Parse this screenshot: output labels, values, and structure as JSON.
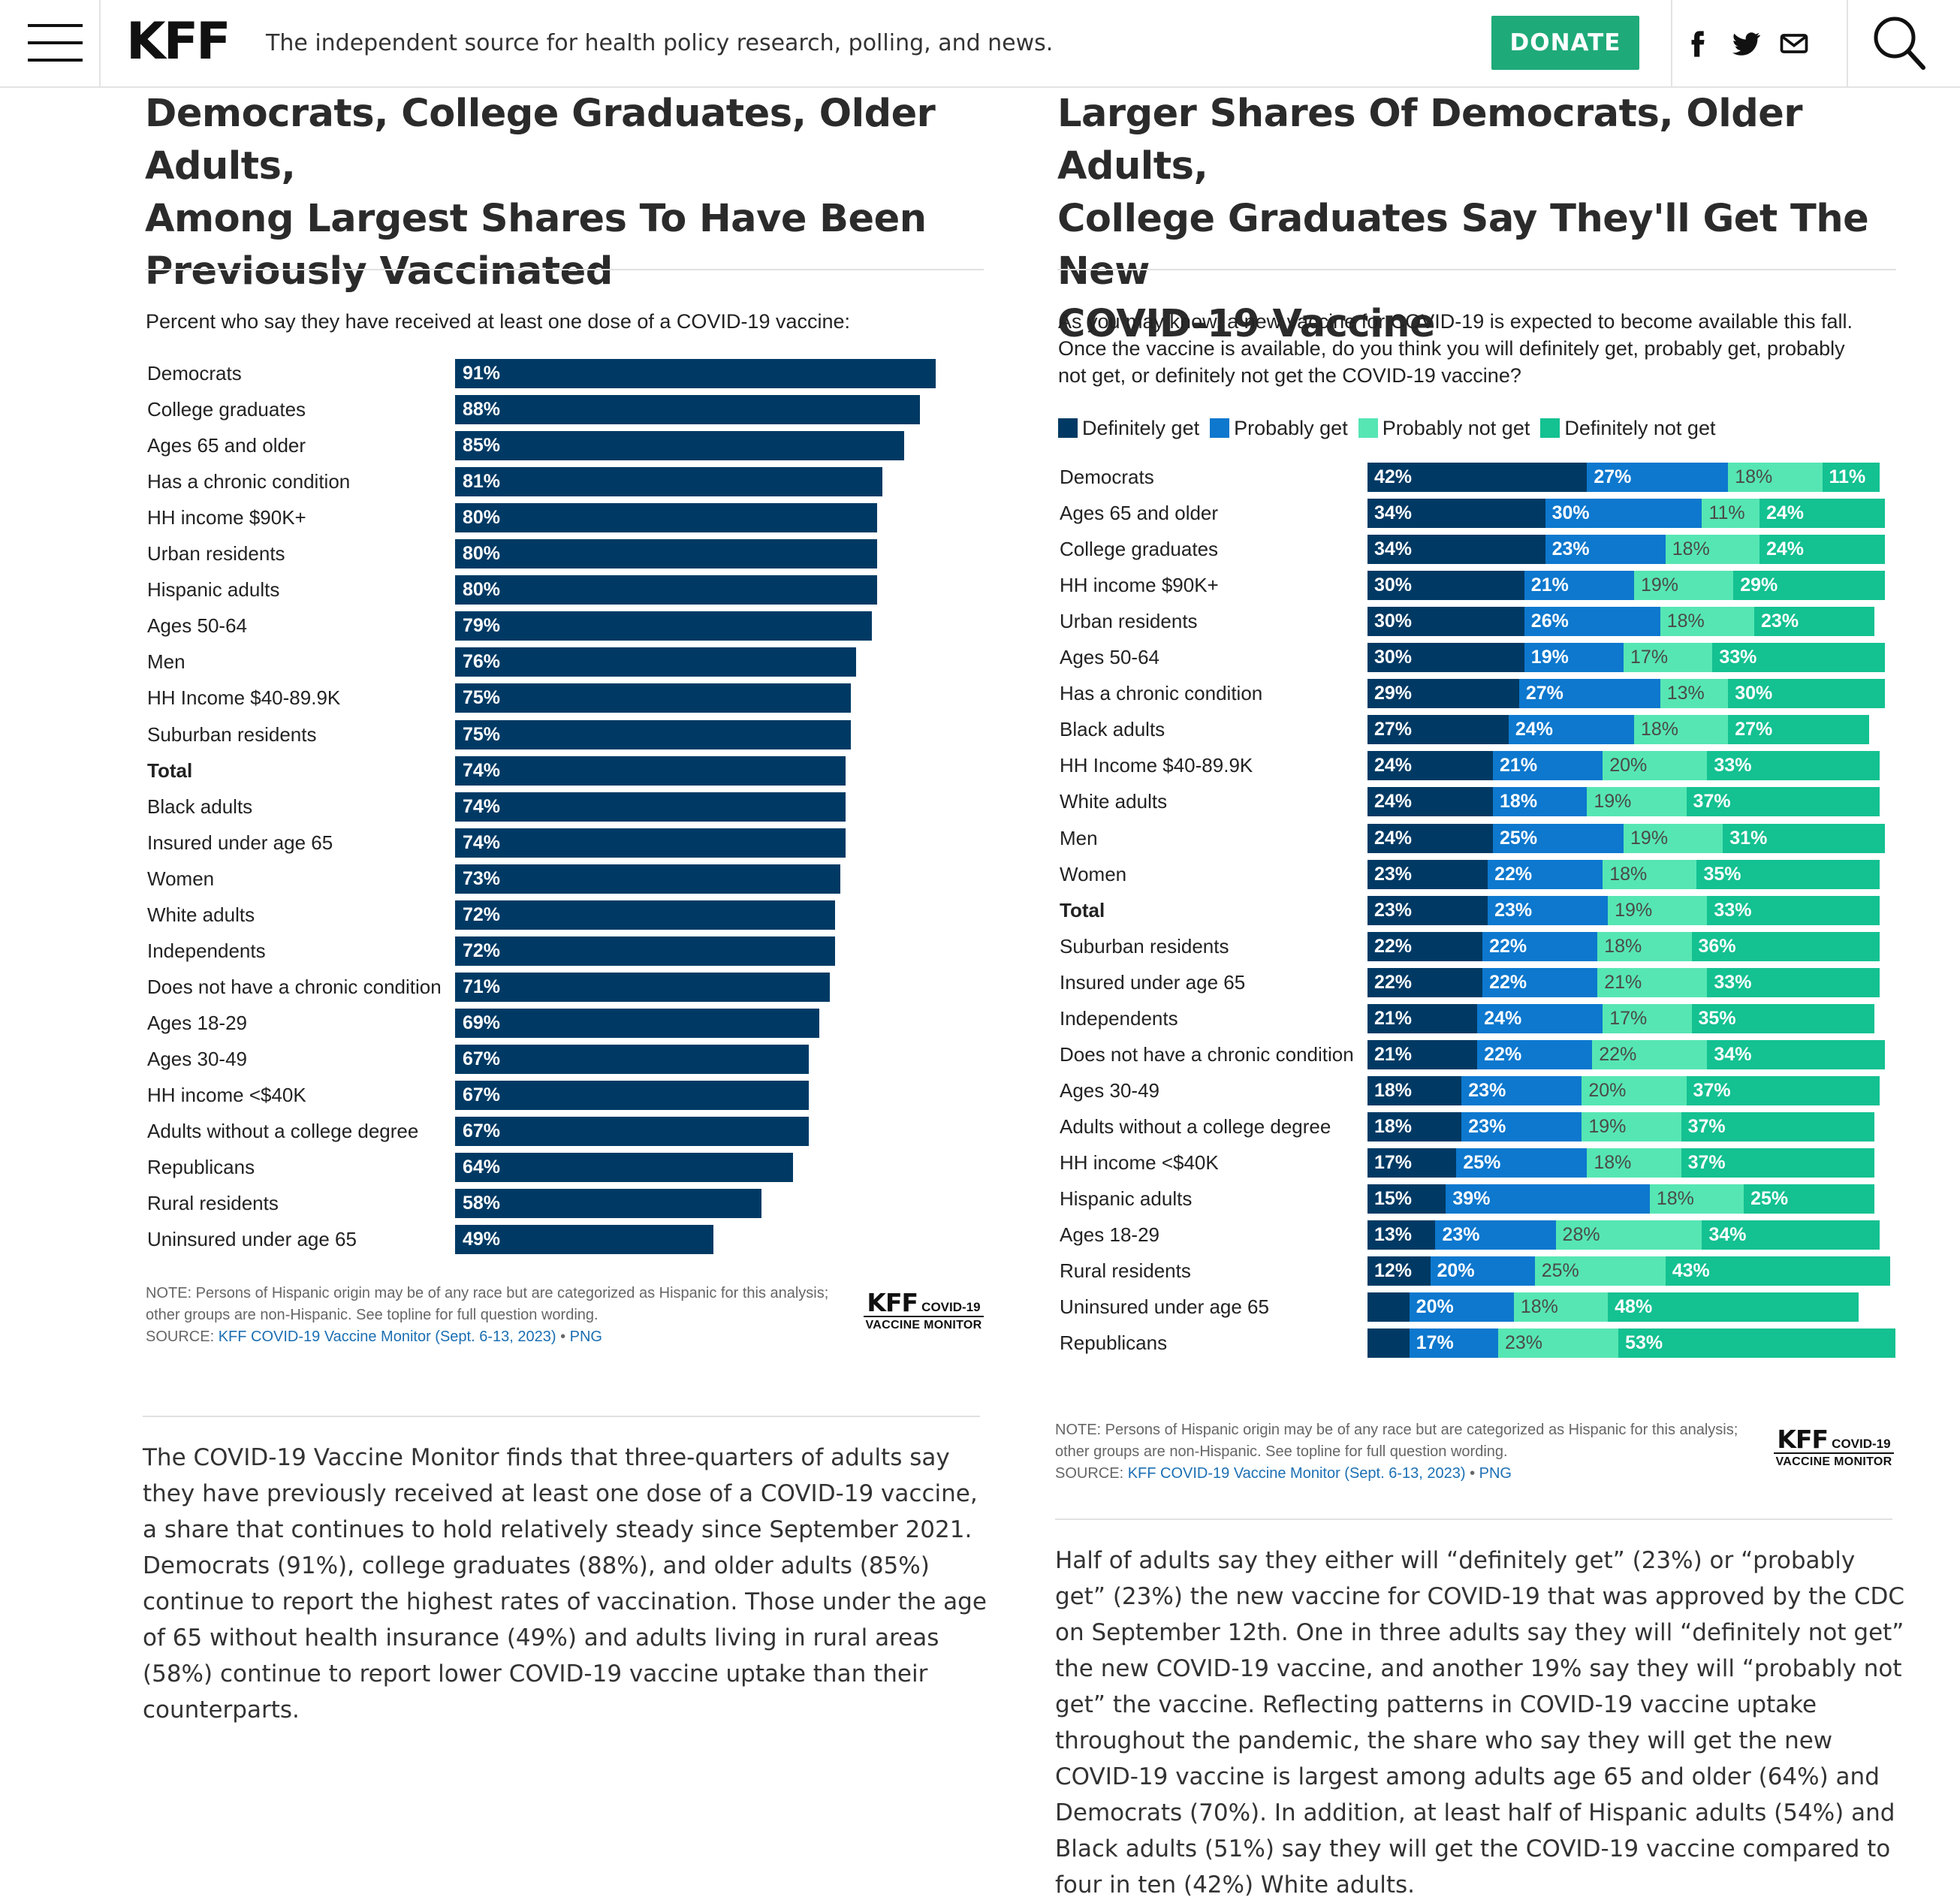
{
  "header": {
    "logo": "KFF",
    "tagline": "The independent source for health policy research, polling, and news.",
    "donate_label": "DONATE",
    "social_icons": [
      "facebook-icon",
      "twitter-icon",
      "email-icon"
    ],
    "search_icon": "search-icon",
    "menu_icon": "hamburger-menu-icon"
  },
  "colors": {
    "kff_green": "#1faa7a",
    "definitely_get": "#003a64",
    "probably_get": "#0d78ce",
    "probably_not_get": "#56e6b3",
    "definitely_not_get": "#14c191",
    "link": "#1b6fb3"
  },
  "left": {
    "title_lines": [
      "Democrats, College Graduates, Older Adults,",
      "Among Largest Shares To Have Been",
      "Previously Vaccinated"
    ],
    "subtitle": "Percent who say they have received at least one dose of a COVID-19 vaccine:",
    "note": "NOTE: Persons of Hispanic origin may be of any race but are categorized as Hispanic for this analysis; other groups are non-Hispanic. See topline for full question wording.",
    "source_prefix": "SOURCE: ",
    "source_link": "KFF COVID-19 Vaccine Monitor (Sept. 6-13, 2023)",
    "source_sep": " • ",
    "png_link": "PNG",
    "badge": {
      "kff": "KFF",
      "covid": "COVID-19",
      "monitor": "VACCINE MONITOR"
    },
    "paragraph": "The COVID-19 Vaccine Monitor finds that three-quarters of adults say they have previously received at least one dose of a COVID-19 vaccine, a share that continues to hold relatively steady since September 2021. Democrats (91%), college graduates (88%), and older adults (85%) continue to report the highest rates of vaccination. Those under the age of 65 without health insurance (49%) and adults living in rural areas (58%) continue to report lower COVID-19 vaccine uptake than their counterparts."
  },
  "right": {
    "title_lines": [
      "Larger Shares Of Democrats, Older Adults,",
      "College Graduates Say They'll Get The New",
      "COVID-19 Vaccine"
    ],
    "subtitle_lines": [
      "As you may know, a new vaccine for COVID-19 is expected to become available this fall.",
      "Once the vaccine is available, do you think you will definitely get, probably get, probably",
      "not get, or definitely not get the COVID-19 vaccine?"
    ],
    "note": "NOTE: Persons of Hispanic origin may be of any race but are categorized as Hispanic for this analysis; other groups are non-Hispanic. See topline for full question wording.",
    "source_prefix": "SOURCE: ",
    "source_link": "KFF COVID-19 Vaccine Monitor (Sept. 6-13, 2023)",
    "source_sep": " • ",
    "png_link": "PNG",
    "badge": {
      "kff": "KFF",
      "covid": "COVID-19",
      "monitor": "VACCINE MONITOR"
    },
    "paragraph": "Half of adults say they either will “definitely get” (23%) or “probably get” (23%) the new vaccine for COVID-19 that was approved by the CDC on September 12th. One in three adults say they will “definitely not get” the new COVID-19 vaccine, and another 19% say they will “probably not get” the vaccine. Reflecting patterns in COVID-19 vaccine uptake throughout the pandemic, the share who say they will get the new COVID-19 vaccine is largest among adults age 65 and older (64%) and Democrats (70%). In addition, at least half of Hispanic adults (54%) and Black adults (51%) say they will get the COVID-19 vaccine compared to four in ten (42%) White adults."
  },
  "chart_data": [
    {
      "type": "bar",
      "orientation": "horizontal",
      "title": "Democrats, College Graduates, Older Adults, Among Largest Shares To Have Been Previously Vaccinated",
      "subtitle": "Percent who say they have received at least one dose of a COVID-19 vaccine:",
      "categories": [
        "Democrats",
        "College graduates",
        "Ages 65 and older",
        "Has a chronic condition",
        "HH income $90K+",
        "Urban residents",
        "Hispanic adults",
        "Ages 50-64",
        "Men",
        "HH Income $40-89.9K",
        "Suburban residents",
        "Total",
        "Black adults",
        "Insured under age 65",
        "Women",
        "White adults",
        "Independents",
        "Does not have a chronic condition",
        "Ages 18-29",
        "Ages 30-49",
        "HH income <$40K",
        "Adults without a college degree",
        "Republicans",
        "Rural residents",
        "Uninsured under age 65"
      ],
      "values": [
        91,
        88,
        85,
        81,
        80,
        80,
        80,
        79,
        76,
        75,
        75,
        74,
        74,
        74,
        73,
        72,
        72,
        71,
        69,
        67,
        67,
        67,
        64,
        58,
        49
      ],
      "bold_category": "Total",
      "color": "#003a64",
      "xlim": [
        0,
        100
      ],
      "grid": false
    },
    {
      "type": "bar",
      "orientation": "horizontal",
      "stacked": true,
      "title": "Larger Shares Of Democrats, Older Adults, College Graduates Say They'll Get The New COVID-19 Vaccine",
      "legend": "top-left",
      "categories": [
        "Democrats",
        "Ages 65 and older",
        "College graduates",
        "HH income $90K+",
        "Urban residents",
        "Ages 50-64",
        "Has a chronic condition",
        "Black adults",
        "HH Income $40-89.9K",
        "White adults",
        "Men",
        "Women",
        "Total",
        "Suburban residents",
        "Insured under age 65",
        "Independents",
        "Does not have a chronic condition",
        "Ages 30-49",
        "Adults without a college degree",
        "HH income <$40K",
        "Hispanic adults",
        "Ages 18-29",
        "Rural residents",
        "Uninsured under age 65",
        "Republicans"
      ],
      "bold_category": "Total",
      "series": [
        {
          "name": "Definitely get",
          "color": "#003a64",
          "values": [
            42,
            34,
            34,
            30,
            30,
            30,
            29,
            27,
            24,
            24,
            24,
            23,
            23,
            22,
            22,
            21,
            21,
            18,
            18,
            17,
            15,
            13,
            12,
            8,
            8
          ],
          "labels": [
            "42%",
            "34%",
            "34%",
            "30%",
            "30%",
            "30%",
            "29%",
            "27%",
            "24%",
            "24%",
            "24%",
            "23%",
            "23%",
            "22%",
            "22%",
            "21%",
            "21%",
            "18%",
            "18%",
            "17%",
            "15%",
            "13%",
            "12%",
            "",
            ""
          ]
        },
        {
          "name": "Probably get",
          "color": "#0d78ce",
          "values": [
            27,
            30,
            23,
            21,
            26,
            19,
            27,
            24,
            21,
            18,
            25,
            22,
            23,
            22,
            22,
            24,
            22,
            23,
            23,
            25,
            39,
            23,
            20,
            20,
            17
          ],
          "labels": [
            "27%",
            "30%",
            "23%",
            "21%",
            "26%",
            "19%",
            "27%",
            "24%",
            "21%",
            "18%",
            "25%",
            "22%",
            "23%",
            "22%",
            "22%",
            "24%",
            "22%",
            "23%",
            "23%",
            "25%",
            "39%",
            "23%",
            "20%",
            "20%",
            "17%"
          ]
        },
        {
          "name": "Probably not get",
          "color": "#56e6b3",
          "values": [
            18,
            11,
            18,
            19,
            18,
            17,
            13,
            18,
            20,
            19,
            19,
            18,
            19,
            18,
            21,
            17,
            22,
            20,
            19,
            18,
            18,
            28,
            25,
            18,
            23
          ],
          "labels": [
            "18%",
            "11%",
            "18%",
            "19%",
            "18%",
            "17%",
            "13%",
            "18%",
            "20%",
            "19%",
            "19%",
            "18%",
            "19%",
            "18%",
            "21%",
            "17%",
            "22%",
            "20%",
            "19%",
            "18%",
            "18%",
            "28%",
            "25%",
            "18%",
            "23%"
          ]
        },
        {
          "name": "Definitely not get",
          "color": "#14c191",
          "values": [
            11,
            24,
            24,
            29,
            23,
            33,
            30,
            27,
            33,
            37,
            31,
            35,
            33,
            36,
            33,
            35,
            34,
            37,
            37,
            37,
            25,
            34,
            43,
            48,
            53
          ],
          "labels": [
            "11%",
            "24%",
            "24%",
            "29%",
            "23%",
            "33%",
            "30%",
            "27%",
            "33%",
            "37%",
            "31%",
            "35%",
            "33%",
            "36%",
            "33%",
            "35%",
            "34%",
            "37%",
            "37%",
            "37%",
            "25%",
            "34%",
            "43%",
            "48%",
            "53%"
          ]
        }
      ],
      "xlim": [
        0,
        100
      ],
      "grid": false
    }
  ]
}
